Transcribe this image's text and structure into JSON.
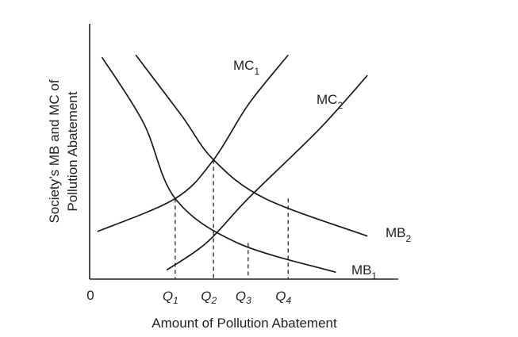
{
  "chart_data": {
    "type": "line",
    "xlabel": "Amount of Pollution Abatement",
    "ylabel_lines": [
      "Society’s MB and MC of",
      "Pollution Abatement"
    ],
    "origin_label": "0",
    "series": [
      {
        "name": "MC",
        "subscript": "1",
        "x": [
          0.5,
          5.56,
          8.05,
          10.3,
          12.9
        ],
        "y": [
          2.1,
          3.56,
          5.27,
          7.7,
          9.9
        ]
      },
      {
        "name": "MC",
        "subscript": "2",
        "x": [
          5.0,
          7.59,
          10.3,
          14.9,
          18.05
        ],
        "y": [
          0.4,
          1.6,
          3.56,
          6.61,
          9.0
        ]
      },
      {
        "name": "MB",
        "subscript": "1",
        "x": [
          0.8,
          3.5,
          5.56,
          9.6,
          16.0
        ],
        "y": [
          9.8,
          6.9,
          3.56,
          1.6,
          0.3
        ]
      },
      {
        "name": "MB",
        "subscript": "2",
        "x": [
          3.0,
          6.0,
          8.05,
          11.4,
          18.05
        ],
        "y": [
          9.9,
          7.2,
          5.27,
          3.56,
          1.9
        ]
      }
    ],
    "reference_lines": [
      {
        "label": "Q",
        "subscript": "1",
        "x": 5.56,
        "y": 3.56
      },
      {
        "label": "Q",
        "subscript": "2",
        "x": 8.05,
        "y": 5.27
      },
      {
        "label": "Q",
        "subscript": "3",
        "x": 10.3,
        "y": 1.6
      },
      {
        "label": "Q",
        "subscript": "4",
        "x": 12.9,
        "y": 3.56
      }
    ],
    "grid": false,
    "legend": "none"
  }
}
